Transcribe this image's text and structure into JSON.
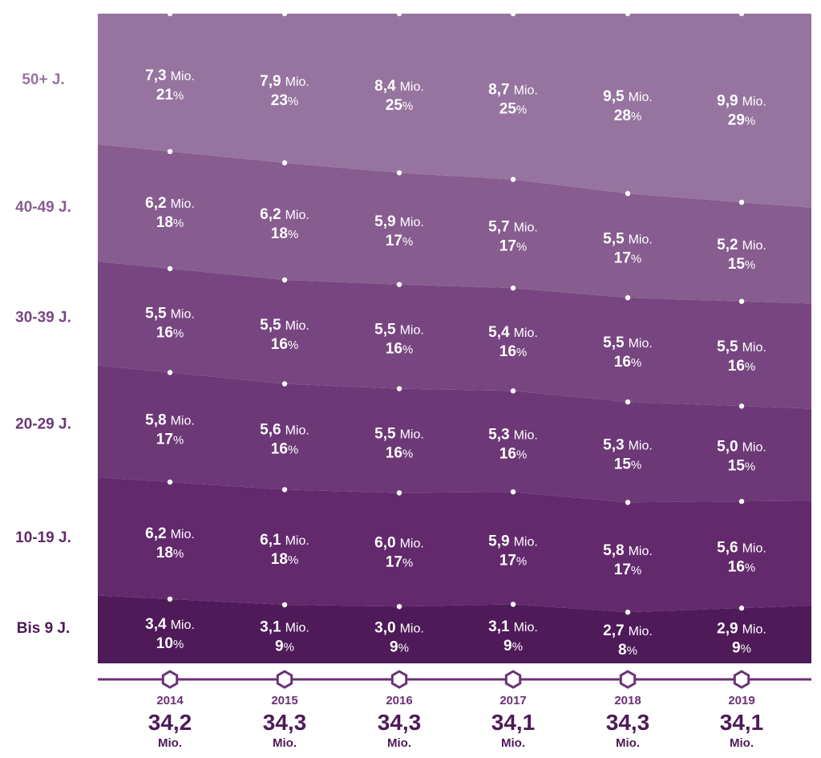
{
  "chart_data": {
    "type": "area",
    "stacked": true,
    "title": "",
    "xlabel": "",
    "ylabel": "",
    "unit_label": "Mio.",
    "x": [
      "2014",
      "2015",
      "2016",
      "2017",
      "2018",
      "2019"
    ],
    "totals": {
      "values": [
        "34,2",
        "34,3",
        "34,3",
        "34,1",
        "34,3",
        "34,1"
      ],
      "unit": "Mio."
    },
    "series": [
      {
        "name": "Bis 9 J.",
        "color": "#4e1a58",
        "values": [
          3.4,
          3.1,
          3.0,
          3.1,
          2.7,
          2.9
        ],
        "labels": [
          "3,4",
          "3,1",
          "3,0",
          "3,1",
          "2,7",
          "2,9"
        ],
        "percents": [
          "10",
          "9",
          "9",
          "9",
          "8",
          "9"
        ]
      },
      {
        "name": "10-19 J.",
        "color": "#63296d",
        "values": [
          6.2,
          6.1,
          6.0,
          5.9,
          5.8,
          5.6
        ],
        "labels": [
          "6,2",
          "6,1",
          "6,0",
          "5,9",
          "5,8",
          "5,6"
        ],
        "percents": [
          "18",
          "18",
          "17",
          "17",
          "17",
          "16"
        ]
      },
      {
        "name": "20-29 J.",
        "color": "#6c3876",
        "values": [
          5.8,
          5.6,
          5.5,
          5.3,
          5.3,
          5.0
        ],
        "labels": [
          "5,8",
          "5,6",
          "5,5",
          "5,3",
          "5,3",
          "5,0"
        ],
        "percents": [
          "17",
          "16",
          "16",
          "16",
          "15",
          "15"
        ]
      },
      {
        "name": "30-39 J.",
        "color": "#774680",
        "values": [
          5.5,
          5.5,
          5.5,
          5.4,
          5.5,
          5.5
        ],
        "labels": [
          "5,5",
          "5,5",
          "5,5",
          "5,4",
          "5,5",
          "5,5"
        ],
        "percents": [
          "16",
          "16",
          "16",
          "16",
          "16",
          "16"
        ]
      },
      {
        "name": "40-49 J.",
        "color": "#875c8f",
        "values": [
          6.2,
          6.2,
          5.9,
          5.7,
          5.5,
          5.2
        ],
        "labels": [
          "6,2",
          "6,2",
          "5,9",
          "5,7",
          "5,5",
          "5,2"
        ],
        "percents": [
          "18",
          "18",
          "17",
          "17",
          "17",
          "15"
        ]
      },
      {
        "name": "50+ J.",
        "color": "#97749f",
        "values": [
          7.3,
          7.9,
          8.4,
          8.7,
          9.5,
          9.9
        ],
        "labels": [
          "7,3",
          "7,9",
          "8,4",
          "8,7",
          "9,5",
          "9,9"
        ],
        "percents": [
          "21",
          "23",
          "25",
          "25",
          "28",
          "29"
        ]
      }
    ]
  }
}
